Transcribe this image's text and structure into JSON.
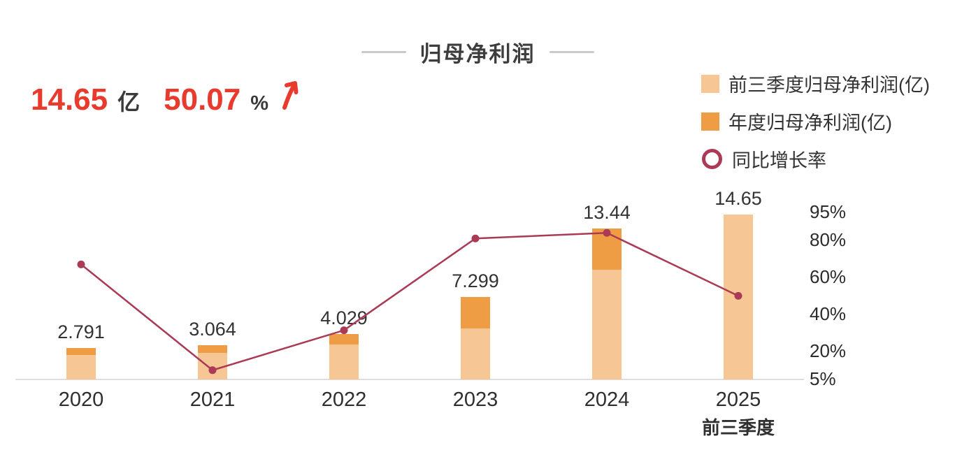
{
  "title": "归母净利润",
  "headline": {
    "value": "14.65",
    "unit": "亿",
    "growth": "50.07",
    "growth_unit": "%"
  },
  "legend": [
    {
      "label": "前三季度归母净利润(亿)",
      "type": "square",
      "color": "#f6c795"
    },
    {
      "label": "年度归母净利润(亿)",
      "type": "square",
      "color": "#ef9d45"
    },
    {
      "label": "同比增长率",
      "type": "circle",
      "color": "#aa3a55"
    }
  ],
  "colors": {
    "q3_bar": "#f6c795",
    "annual_bar": "#ef9d45",
    "growth_line": "#aa3a55",
    "headline_red": "#e93a2e"
  },
  "chart_data": {
    "type": "bar+line",
    "title": "归母净利润",
    "categories": [
      "2020",
      "2021",
      "2022",
      "2023",
      "2024",
      "2025"
    ],
    "x_sub_label": {
      "index": 5,
      "text": "前三季度"
    },
    "series": [
      {
        "name": "前三季度归母净利润(亿)",
        "type": "bar",
        "color": "#f6c795",
        "values": [
          2.2,
          2.35,
          3.1,
          4.55,
          9.75,
          14.65
        ]
      },
      {
        "name": "年度归母净利润(亿)",
        "type": "bar",
        "color": "#ef9d45",
        "values": [
          2.791,
          3.064,
          4.029,
          7.299,
          13.44,
          null
        ]
      },
      {
        "name": "同比增长率",
        "type": "line",
        "axis": "percent",
        "color": "#aa3a55",
        "values": [
          67,
          10,
          31.5,
          81,
          84,
          50.07
        ]
      }
    ],
    "bar_labels": [
      "2.791",
      "3.064",
      "4.029",
      "7.299",
      "13.44",
      "14.65"
    ],
    "percent_axis_ticks": [
      "95%",
      "80%",
      "60%",
      "40%",
      "20%",
      "5%"
    ],
    "percent_axis_values": [
      95,
      80,
      60,
      40,
      20,
      5
    ],
    "percent_axis_range": [
      5,
      95
    ],
    "legend_position": "top-right",
    "grid": false
  }
}
